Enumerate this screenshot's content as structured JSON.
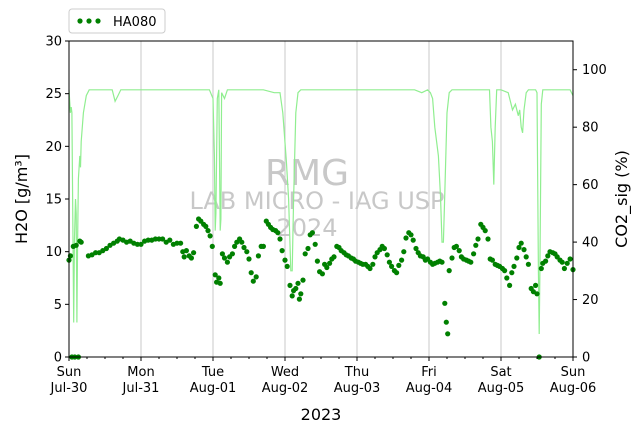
{
  "chart_data": {
    "type": "scatter",
    "xlabel": "2023",
    "ylabel_left": "H2O [g/m³]",
    "ylabel_right": "CO2_sig (%)",
    "ylim_left": [
      0,
      30
    ],
    "ylim_right": [
      0,
      110
    ],
    "yticks_left": [
      0,
      5,
      10,
      15,
      20,
      25,
      30
    ],
    "yticks_right": [
      0,
      20,
      40,
      60,
      80,
      100
    ],
    "x_ticks": [
      {
        "day": 0,
        "line1": "Sun",
        "line2": "Jul-30"
      },
      {
        "day": 1,
        "line1": "Mon",
        "line2": "Jul-31"
      },
      {
        "day": 2,
        "line1": "Tue",
        "line2": "Aug-01"
      },
      {
        "day": 3,
        "line1": "Wed",
        "line2": "Aug-02"
      },
      {
        "day": 4,
        "line1": "Thu",
        "line2": "Aug-03"
      },
      {
        "day": 5,
        "line1": "Fri",
        "line2": "Aug-04"
      },
      {
        "day": 6,
        "line1": "Sat",
        "line2": "Aug-05"
      },
      {
        "day": 7,
        "line1": "Sun",
        "line2": "Aug-06"
      }
    ],
    "grid": "vertical",
    "legend": {
      "placement": "top-left",
      "label": "HA080"
    },
    "colors": {
      "h2o": "#008000",
      "co2": "#90ee90",
      "watermark": "#c8c8c8"
    },
    "watermark": {
      "line1": "RMG",
      "line2": "LAB MICRO - IAG USP",
      "line3": "2024"
    },
    "series": [
      {
        "name": "HA080",
        "axis": "left",
        "points": [
          [
            0.0,
            9.2
          ],
          [
            0.02,
            9.6
          ],
          [
            0.04,
            0.0
          ],
          [
            0.06,
            10.5
          ],
          [
            0.08,
            0.0
          ],
          [
            0.1,
            10.6
          ],
          [
            0.13,
            0.0
          ],
          [
            0.15,
            11.0
          ],
          [
            0.17,
            10.9
          ],
          [
            0.27,
            9.6
          ],
          [
            0.32,
            9.7
          ],
          [
            0.37,
            9.9
          ],
          [
            0.42,
            9.9
          ],
          [
            0.47,
            10.1
          ],
          [
            0.52,
            10.3
          ],
          [
            0.57,
            10.6
          ],
          [
            0.62,
            10.8
          ],
          [
            0.67,
            11.0
          ],
          [
            0.7,
            11.2
          ],
          [
            0.75,
            11.1
          ],
          [
            0.8,
            10.9
          ],
          [
            0.85,
            11.0
          ],
          [
            0.9,
            10.8
          ],
          [
            0.95,
            10.7
          ],
          [
            1.0,
            10.7
          ],
          [
            1.05,
            11.0
          ],
          [
            1.1,
            11.1
          ],
          [
            1.15,
            11.1
          ],
          [
            1.2,
            11.2
          ],
          [
            1.25,
            11.2
          ],
          [
            1.3,
            11.2
          ],
          [
            1.35,
            10.9
          ],
          [
            1.4,
            11.1
          ],
          [
            1.45,
            10.7
          ],
          [
            1.5,
            10.8
          ],
          [
            1.55,
            10.8
          ],
          [
            1.58,
            10.0
          ],
          [
            1.6,
            9.5
          ],
          [
            1.63,
            10.1
          ],
          [
            1.67,
            9.6
          ],
          [
            1.7,
            9.4
          ],
          [
            1.73,
            9.9
          ],
          [
            1.77,
            12.4
          ],
          [
            1.8,
            13.1
          ],
          [
            1.83,
            12.9
          ],
          [
            1.87,
            12.6
          ],
          [
            1.9,
            12.4
          ],
          [
            1.93,
            12.0
          ],
          [
            1.96,
            11.5
          ],
          [
            1.99,
            10.5
          ],
          [
            2.03,
            7.8
          ],
          [
            2.05,
            7.1
          ],
          [
            2.08,
            7.5
          ],
          [
            2.1,
            7.0
          ],
          [
            2.13,
            9.8
          ],
          [
            2.16,
            9.4
          ],
          [
            2.2,
            9.0
          ],
          [
            2.23,
            9.5
          ],
          [
            2.27,
            9.8
          ],
          [
            2.3,
            10.5
          ],
          [
            2.33,
            10.9
          ],
          [
            2.37,
            11.2
          ],
          [
            2.4,
            10.9
          ],
          [
            2.43,
            10.4
          ],
          [
            2.47,
            10.0
          ],
          [
            2.5,
            9.3
          ],
          [
            2.53,
            8.0
          ],
          [
            2.56,
            7.2
          ],
          [
            2.6,
            7.6
          ],
          [
            2.63,
            9.6
          ],
          [
            2.67,
            10.5
          ],
          [
            2.7,
            10.5
          ],
          [
            2.74,
            12.9
          ],
          [
            2.77,
            12.6
          ],
          [
            2.8,
            12.3
          ],
          [
            2.83,
            12.1
          ],
          [
            2.87,
            12.0
          ],
          [
            2.9,
            11.8
          ],
          [
            2.93,
            11.2
          ],
          [
            2.96,
            10.1
          ],
          [
            3.0,
            9.2
          ],
          [
            3.03,
            8.6
          ],
          [
            3.07,
            6.8
          ],
          [
            3.1,
            5.8
          ],
          [
            3.12,
            6.3
          ],
          [
            3.15,
            6.5
          ],
          [
            3.18,
            7.0
          ],
          [
            3.2,
            5.5
          ],
          [
            3.22,
            6.0
          ],
          [
            3.25,
            7.3
          ],
          [
            3.28,
            9.8
          ],
          [
            3.32,
            10.3
          ],
          [
            3.35,
            11.6
          ],
          [
            3.38,
            11.8
          ],
          [
            3.42,
            10.7
          ],
          [
            3.45,
            9.1
          ],
          [
            3.48,
            8.1
          ],
          [
            3.52,
            7.9
          ],
          [
            3.55,
            8.8
          ],
          [
            3.58,
            8.5
          ],
          [
            3.62,
            8.9
          ],
          [
            3.65,
            9.3
          ],
          [
            3.68,
            9.5
          ],
          [
            3.72,
            10.5
          ],
          [
            3.75,
            10.4
          ],
          [
            3.78,
            10.1
          ],
          [
            3.82,
            9.9
          ],
          [
            3.85,
            9.7
          ],
          [
            3.88,
            9.6
          ],
          [
            3.92,
            9.4
          ],
          [
            3.95,
            9.3
          ],
          [
            3.98,
            9.1
          ],
          [
            4.02,
            9.0
          ],
          [
            4.05,
            8.9
          ],
          [
            4.08,
            8.8
          ],
          [
            4.12,
            8.8
          ],
          [
            4.15,
            8.6
          ],
          [
            4.18,
            8.4
          ],
          [
            4.22,
            8.8
          ],
          [
            4.25,
            9.5
          ],
          [
            4.28,
            9.9
          ],
          [
            4.32,
            10.2
          ],
          [
            4.35,
            10.5
          ],
          [
            4.38,
            10.3
          ],
          [
            4.42,
            9.7
          ],
          [
            4.45,
            9.0
          ],
          [
            4.48,
            8.6
          ],
          [
            4.52,
            8.2
          ],
          [
            4.55,
            8.0
          ],
          [
            4.58,
            8.7
          ],
          [
            4.62,
            9.2
          ],
          [
            4.65,
            10.0
          ],
          [
            4.68,
            11.3
          ],
          [
            4.72,
            11.8
          ],
          [
            4.75,
            11.6
          ],
          [
            4.78,
            11.1
          ],
          [
            4.82,
            10.3
          ],
          [
            4.85,
            9.9
          ],
          [
            4.88,
            9.6
          ],
          [
            4.92,
            9.5
          ],
          [
            4.95,
            9.2
          ],
          [
            4.98,
            9.3
          ],
          [
            5.02,
            9.0
          ],
          [
            5.05,
            8.8
          ],
          [
            5.08,
            8.9
          ],
          [
            5.12,
            9.0
          ],
          [
            5.15,
            9.1
          ],
          [
            5.18,
            9.0
          ],
          [
            5.22,
            5.1
          ],
          [
            5.24,
            3.3
          ],
          [
            5.26,
            2.2
          ],
          [
            5.28,
            8.2
          ],
          [
            5.32,
            9.4
          ],
          [
            5.35,
            10.4
          ],
          [
            5.38,
            10.5
          ],
          [
            5.42,
            10.1
          ],
          [
            5.45,
            9.5
          ],
          [
            5.48,
            9.3
          ],
          [
            5.52,
            9.2
          ],
          [
            5.55,
            9.1
          ],
          [
            5.58,
            9.0
          ],
          [
            5.62,
            9.8
          ],
          [
            5.65,
            10.6
          ],
          [
            5.68,
            11.2
          ],
          [
            5.72,
            12.6
          ],
          [
            5.75,
            12.3
          ],
          [
            5.78,
            12.0
          ],
          [
            5.82,
            11.2
          ],
          [
            5.85,
            9.3
          ],
          [
            5.88,
            9.2
          ],
          [
            5.92,
            8.8
          ],
          [
            5.95,
            8.7
          ],
          [
            5.98,
            8.6
          ],
          [
            6.02,
            8.4
          ],
          [
            6.05,
            8.2
          ],
          [
            6.08,
            7.5
          ],
          [
            6.12,
            6.8
          ],
          [
            6.15,
            8.0
          ],
          [
            6.18,
            8.6
          ],
          [
            6.22,
            9.4
          ],
          [
            6.25,
            10.4
          ],
          [
            6.28,
            10.8
          ],
          [
            6.32,
            10.2
          ],
          [
            6.35,
            9.5
          ],
          [
            6.38,
            8.8
          ],
          [
            6.42,
            6.5
          ],
          [
            6.45,
            6.2
          ],
          [
            6.48,
            6.8
          ],
          [
            6.5,
            6.0
          ],
          [
            6.53,
            0.0
          ],
          [
            6.56,
            8.4
          ],
          [
            6.58,
            8.9
          ],
          [
            6.62,
            9.1
          ],
          [
            6.65,
            9.6
          ],
          [
            6.68,
            10.0
          ],
          [
            6.72,
            9.9
          ],
          [
            6.75,
            9.8
          ],
          [
            6.78,
            9.5
          ],
          [
            6.82,
            9.2
          ],
          [
            6.85,
            9.0
          ],
          [
            6.88,
            8.4
          ],
          [
            6.92,
            8.9
          ],
          [
            6.96,
            9.3
          ],
          [
            7.0,
            8.3
          ]
        ]
      },
      {
        "axis": "right",
        "line": [
          [
            0.0,
            93
          ],
          [
            0.02,
            85
          ],
          [
            0.03,
            87
          ],
          [
            0.04,
            85
          ],
          [
            0.055,
            40
          ],
          [
            0.065,
            12
          ],
          [
            0.075,
            40
          ],
          [
            0.09,
            55
          ],
          [
            0.1,
            50
          ],
          [
            0.11,
            12
          ],
          [
            0.12,
            40
          ],
          [
            0.13,
            62
          ],
          [
            0.15,
            70
          ],
          [
            0.16,
            66
          ],
          [
            0.17,
            75
          ],
          [
            0.2,
            85
          ],
          [
            0.24,
            91
          ],
          [
            0.28,
            93
          ],
          [
            0.6,
            93
          ],
          [
            0.64,
            89
          ],
          [
            0.68,
            91
          ],
          [
            0.72,
            93
          ],
          [
            1.5,
            93
          ],
          [
            1.7,
            93
          ],
          [
            1.8,
            93
          ],
          [
            1.95,
            93
          ],
          [
            2.0,
            90
          ],
          [
            2.02,
            70
          ],
          [
            2.03,
            44
          ],
          [
            2.04,
            50
          ],
          [
            2.06,
            90
          ],
          [
            2.08,
            93
          ],
          [
            2.1,
            44
          ],
          [
            2.11,
            48
          ],
          [
            2.12,
            92
          ],
          [
            2.16,
            90
          ],
          [
            2.2,
            93
          ],
          [
            2.4,
            93
          ],
          [
            2.5,
            93
          ],
          [
            2.7,
            93
          ],
          [
            2.85,
            92
          ],
          [
            2.93,
            92
          ],
          [
            2.97,
            85
          ],
          [
            3.02,
            68
          ],
          [
            3.05,
            55
          ],
          [
            3.08,
            30
          ],
          [
            3.1,
            30
          ],
          [
            3.12,
            55
          ],
          [
            3.15,
            85
          ],
          [
            3.18,
            92
          ],
          [
            3.22,
            93
          ],
          [
            3.8,
            93
          ],
          [
            4.0,
            93
          ],
          [
            4.6,
            93
          ],
          [
            4.7,
            93
          ],
          [
            4.8,
            93
          ],
          [
            4.9,
            92
          ],
          [
            4.98,
            93
          ],
          [
            5.02,
            92
          ],
          [
            5.05,
            90
          ],
          [
            5.08,
            80
          ],
          [
            5.13,
            70
          ],
          [
            5.16,
            56
          ],
          [
            5.18,
            40
          ],
          [
            5.2,
            40
          ],
          [
            5.22,
            57
          ],
          [
            5.25,
            85
          ],
          [
            5.28,
            92
          ],
          [
            5.32,
            93
          ],
          [
            5.8,
            93
          ],
          [
            5.84,
            93
          ],
          [
            5.86,
            80
          ],
          [
            5.88,
            75
          ],
          [
            5.9,
            60
          ],
          [
            5.92,
            80
          ],
          [
            5.94,
            93
          ],
          [
            6.0,
            93
          ],
          [
            6.1,
            92
          ],
          [
            6.14,
            88
          ],
          [
            6.16,
            86
          ],
          [
            6.2,
            88
          ],
          [
            6.24,
            84
          ],
          [
            6.26,
            86
          ],
          [
            6.28,
            80
          ],
          [
            6.3,
            78
          ],
          [
            6.32,
            86
          ],
          [
            6.35,
            92
          ],
          [
            6.38,
            93
          ],
          [
            6.45,
            93
          ],
          [
            6.48,
            93
          ],
          [
            6.5,
            92
          ],
          [
            6.52,
            30
          ],
          [
            6.53,
            8
          ],
          [
            6.54,
            30
          ],
          [
            6.56,
            88
          ],
          [
            6.58,
            93
          ],
          [
            6.8,
            93
          ],
          [
            6.9,
            93
          ],
          [
            6.96,
            93
          ],
          [
            7.0,
            91
          ]
        ]
      }
    ]
  }
}
